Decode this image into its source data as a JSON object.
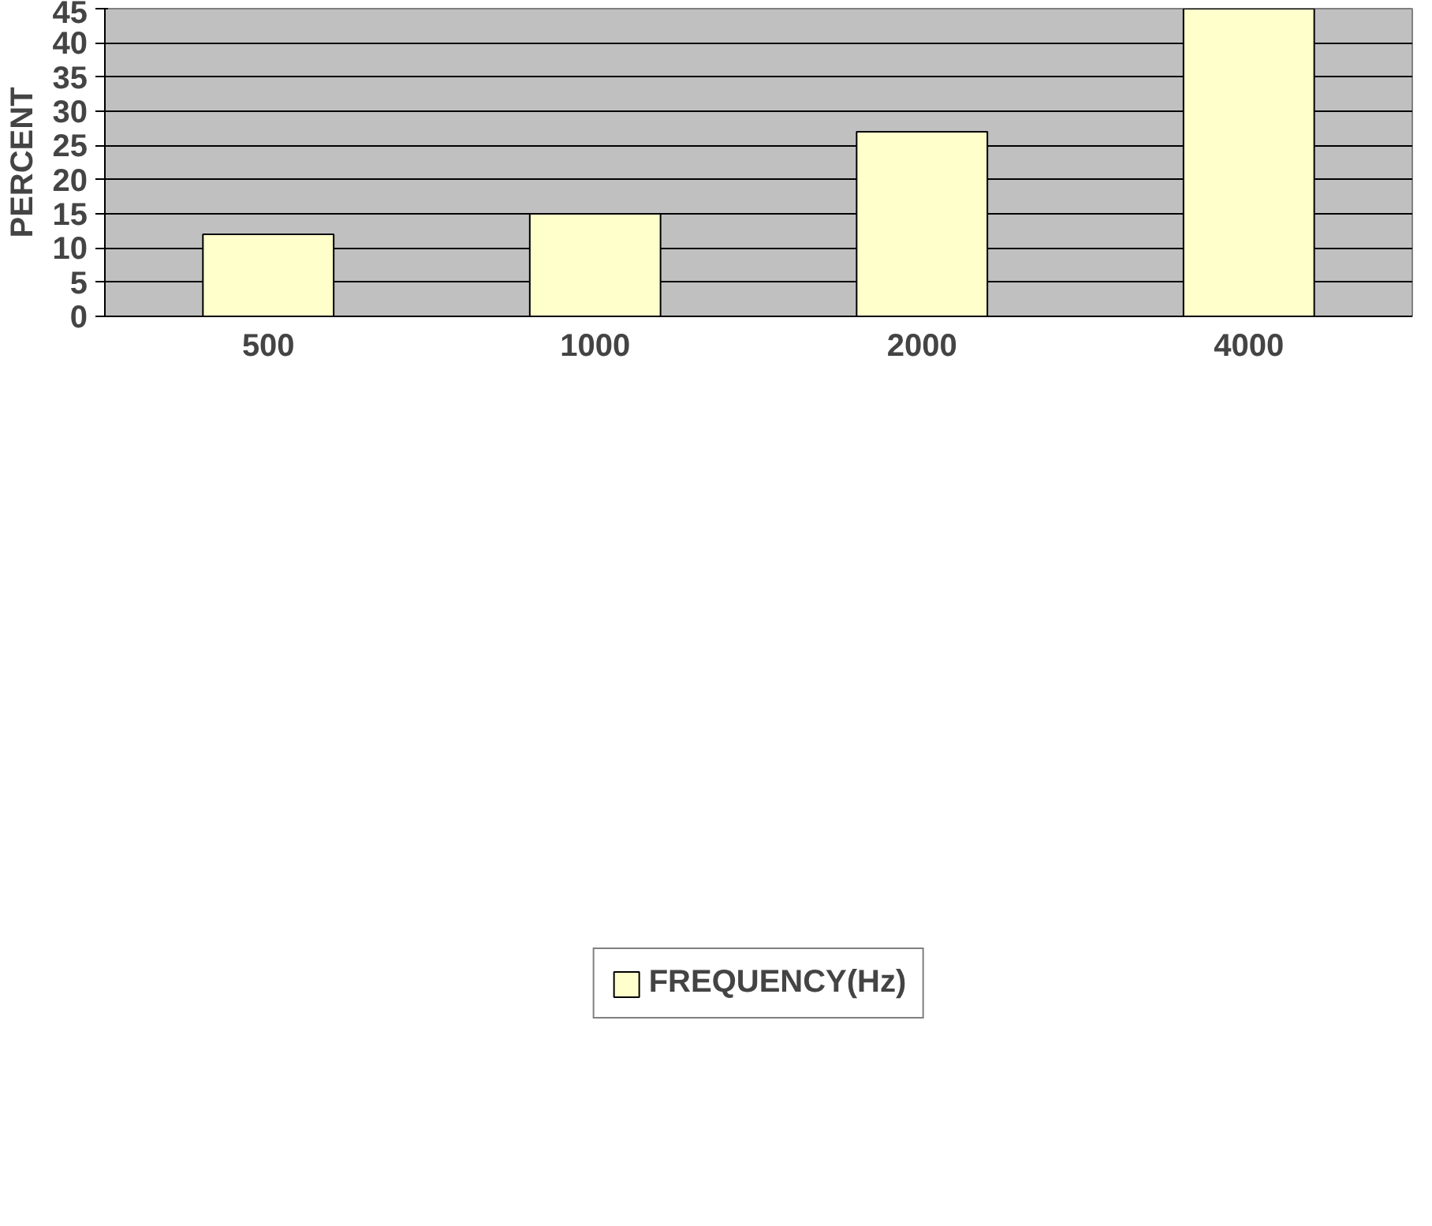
{
  "chart_data": {
    "type": "bar",
    "ylabel": "PERCENT",
    "categories": [
      "500",
      "1000",
      "2000",
      "4000"
    ],
    "series": [
      {
        "name": "FREQUENCY(Hz)",
        "color": "#ffffcc",
        "values": [
          12,
          15,
          27,
          45
        ]
      }
    ],
    "ylim": [
      0,
      45
    ],
    "yticks": [
      0,
      5,
      10,
      15,
      20,
      25,
      30,
      35,
      40,
      45
    ],
    "grid": "y",
    "legend": "bottom"
  }
}
